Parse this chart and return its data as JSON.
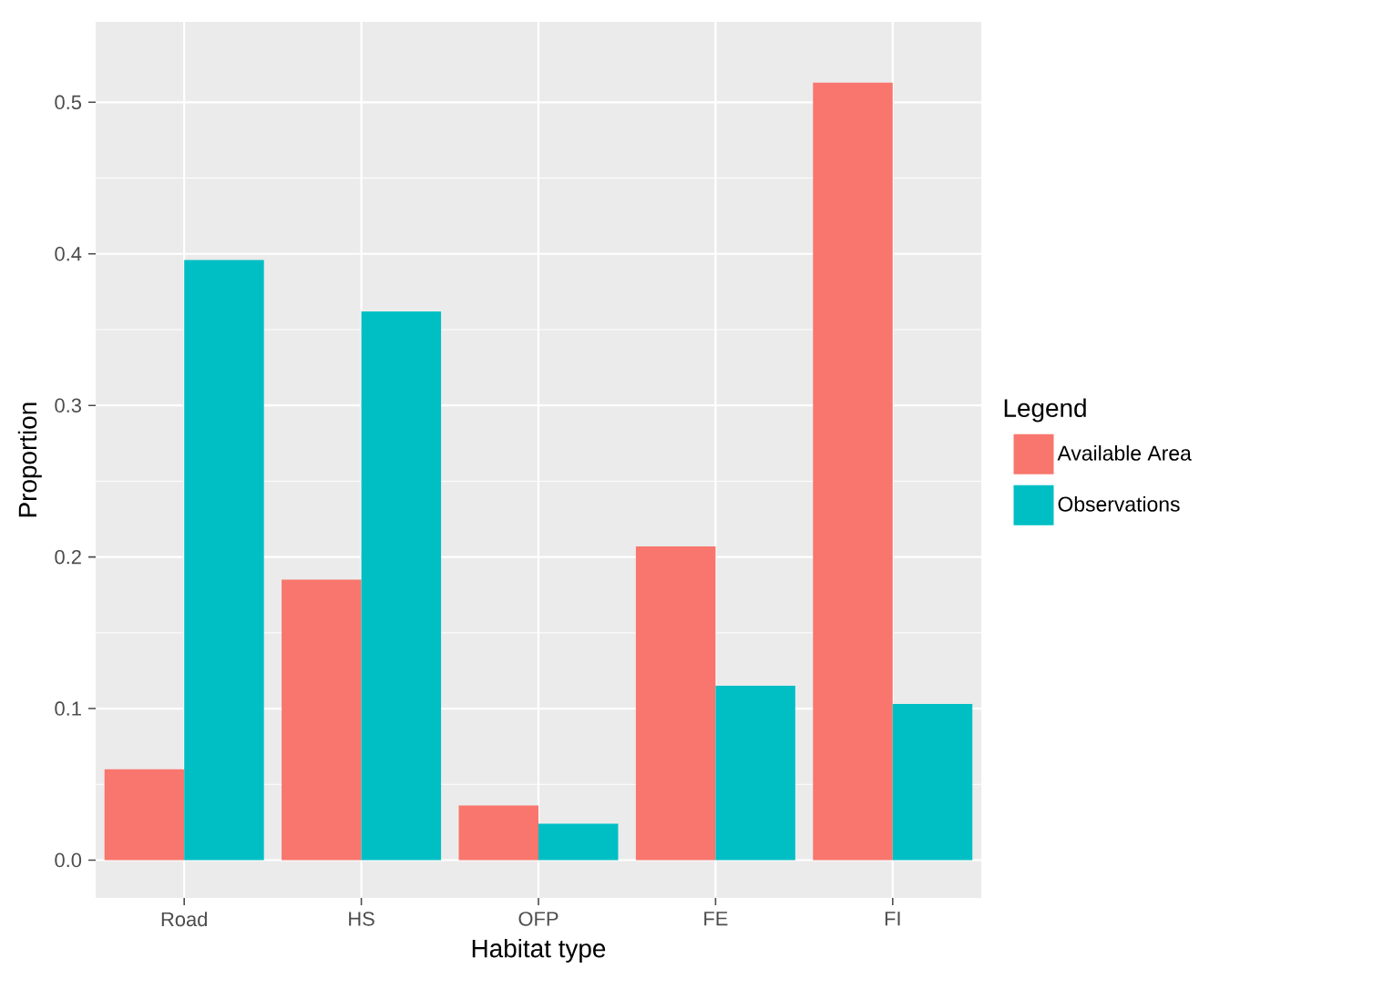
{
  "chart_data": {
    "type": "bar",
    "xlabel": "Habitat type",
    "ylabel": "Proportion",
    "legend_title": "Legend",
    "categories": [
      "Road",
      "HS",
      "OFP",
      "FE",
      "FI"
    ],
    "series": [
      {
        "name": "Available Area",
        "color": "#F8766D",
        "values": [
          0.06,
          0.185,
          0.036,
          0.207,
          0.513
        ]
      },
      {
        "name": "Observations",
        "color": "#00BFC4",
        "values": [
          0.396,
          0.362,
          0.024,
          0.115,
          0.103
        ]
      }
    ],
    "ylim": [
      -0.025,
      0.553
    ],
    "yticks": [
      {
        "value": 0,
        "label": "0.0"
      },
      0.1,
      0.2,
      0.3,
      0.4,
      0.5
    ],
    "grid": true,
    "legend": "right"
  }
}
